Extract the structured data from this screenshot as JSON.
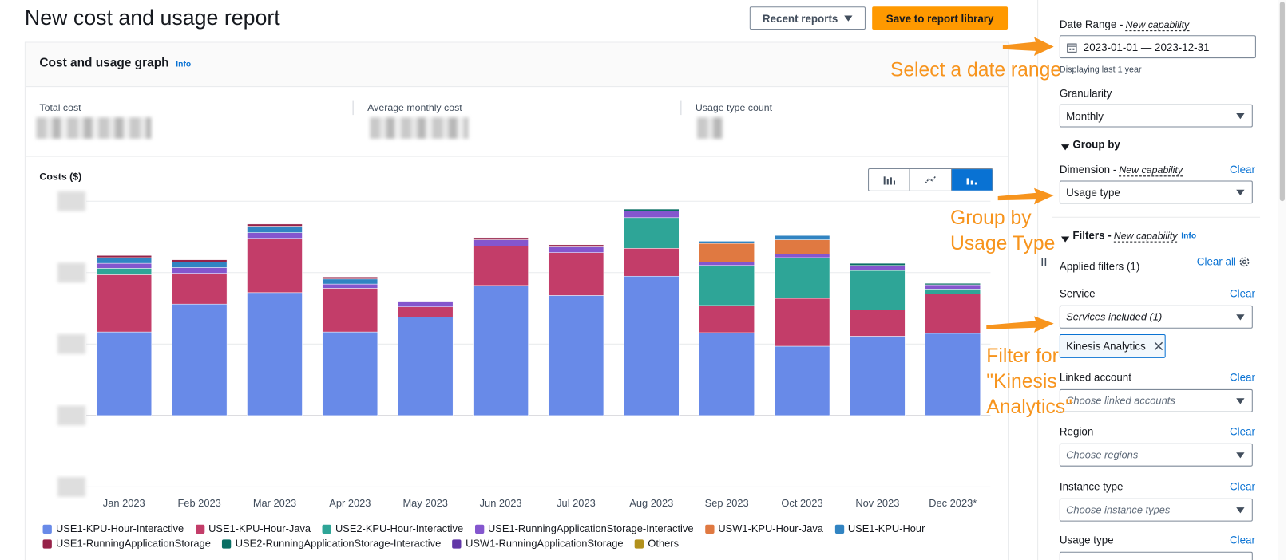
{
  "header": {
    "title": "New cost and usage report",
    "recent_button": "Recent reports",
    "save_button": "Save to report library"
  },
  "card": {
    "title": "Cost and usage graph",
    "info": "Info",
    "metrics": [
      "Total cost",
      "Average monthly cost",
      "Usage type count"
    ]
  },
  "chart_data": {
    "type": "bar",
    "stacked": true,
    "y_label": "Costs ($)",
    "categories": [
      "Jan 2023",
      "Feb 2023",
      "Mar 2023",
      "Apr 2023",
      "May 2023",
      "Jun 2023",
      "Jul 2023",
      "Aug 2023",
      "Sep 2023",
      "Oct 2023",
      "Nov 2023",
      "Dec 2023*"
    ],
    "series": [
      {
        "name": "USE1-KPU-Hour-Interactive",
        "color": "#688ae8",
        "values": [
          1.17,
          1.56,
          1.72,
          1.17,
          1.38,
          1.82,
          1.68,
          1.95,
          1.16,
          0.97,
          1.11,
          1.15
        ]
      },
      {
        "name": "USE1-KPU-Hour-Java",
        "color": "#c33d69",
        "values": [
          0.8,
          0.43,
          0.76,
          0.61,
          0.14,
          0.55,
          0.6,
          0.39,
          0.38,
          0.67,
          0.37,
          0.55
        ]
      },
      {
        "name": "USE2-KPU-Hour-Interactive",
        "color": "#2ea597",
        "values": [
          0.09,
          0,
          0,
          0,
          0,
          0,
          0,
          0.43,
          0.56,
          0.57,
          0.55,
          0.07
        ]
      },
      {
        "name": "USE1-RunningApplicationStorage-Interactive",
        "color": "#8456ce",
        "values": [
          0.07,
          0.08,
          0.08,
          0.06,
          0.08,
          0.09,
          0.08,
          0.09,
          0.05,
          0.05,
          0.07,
          0.06
        ]
      },
      {
        "name": "USW1-KPU-Hour-Java",
        "color": "#e07941",
        "values": [
          0,
          0,
          0,
          0,
          0,
          0,
          0,
          0,
          0.26,
          0.2,
          0,
          0
        ]
      },
      {
        "name": "USE1-KPU-Hour",
        "color": "#3184c2",
        "values": [
          0.08,
          0.08,
          0.09,
          0.07,
          0,
          0,
          0,
          0,
          0.03,
          0.06,
          0,
          0
        ]
      },
      {
        "name": "USE1-RunningApplicationStorage",
        "color": "#962249",
        "values": [
          0.03,
          0.03,
          0.03,
          0.03,
          0,
          0.03,
          0.03,
          0,
          0,
          0,
          0,
          0
        ]
      },
      {
        "name": "USE2-RunningApplicationStorage-Interactive",
        "color": "#096f64",
        "values": [
          0,
          0,
          0,
          0,
          0,
          0,
          0,
          0.03,
          0,
          0,
          0.03,
          0.02
        ]
      },
      {
        "name": "USW1-RunningApplicationStorage",
        "color": "#6237a7",
        "values": [
          0,
          0,
          0,
          0,
          0,
          0,
          0,
          0,
          0,
          0,
          0,
          0
        ]
      },
      {
        "name": "Others",
        "color": "#b2911c",
        "values": [
          0,
          0,
          0,
          0,
          0,
          0,
          0,
          0,
          0,
          0,
          0,
          0
        ]
      }
    ],
    "ylim": [
      -1,
      3
    ],
    "yticks": [
      -1,
      0,
      1,
      2,
      3
    ],
    "grid": true
  },
  "sidebar": {
    "date_range": {
      "label": "Date Range -",
      "tag": "New capability",
      "value": "2023-01-01 — 2023-12-31",
      "hint": "Displaying last 1 year"
    },
    "granularity": {
      "label": "Granularity",
      "value": "Monthly"
    },
    "group_by": {
      "heading": "Group by",
      "label": "Dimension -",
      "tag": "New capability",
      "clear": "Clear",
      "value": "Usage type"
    },
    "filters": {
      "heading": "Filters -",
      "tag": "New capability",
      "info": "Info",
      "applied": "Applied filters (1)",
      "clear_all": "Clear all",
      "token": "Kinesis Analytics",
      "fields": [
        {
          "label": "Service",
          "clear": "Clear",
          "value": "Services included (1)"
        },
        {
          "label": "Linked account",
          "clear": "Clear",
          "value": "Choose linked accounts"
        },
        {
          "label": "Region",
          "clear": "Clear",
          "value": "Choose regions"
        },
        {
          "label": "Instance type",
          "clear": "Clear",
          "value": "Choose instance types"
        },
        {
          "label": "Usage type",
          "clear": "Clear"
        }
      ]
    }
  },
  "annotations": [
    {
      "lines": [
        "Select a date range"
      ]
    },
    {
      "lines": [
        "Group by",
        "Usage Type"
      ]
    },
    {
      "lines": [
        "Filter for",
        "\"Kinesis",
        "Analytics\""
      ]
    }
  ]
}
